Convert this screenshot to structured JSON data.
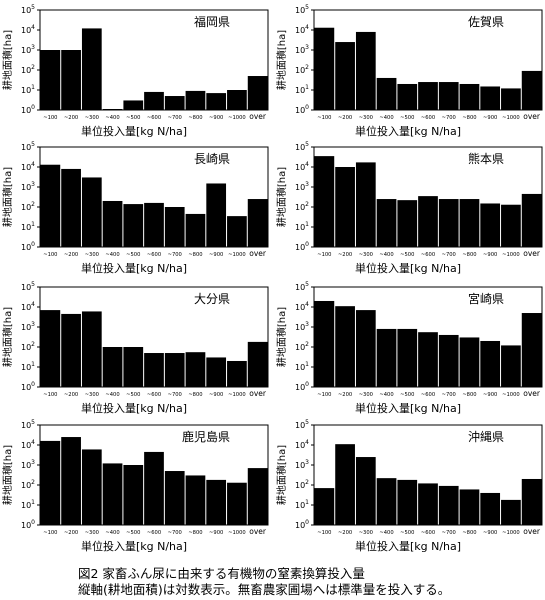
{
  "x_tick_labels": [
    "~100",
    "~200",
    "~300",
    "~400",
    "~500",
    "~600",
    "~700",
    "~800",
    "~900",
    "~1000",
    "over"
  ],
  "y_tick_labels": [
    {
      "base": "10",
      "exp": "0"
    },
    {
      "base": "10",
      "exp": "1"
    },
    {
      "base": "10",
      "exp": "2"
    },
    {
      "base": "10",
      "exp": "3"
    },
    {
      "base": "10",
      "exp": "4"
    },
    {
      "base": "10",
      "exp": "5"
    }
  ],
  "chart_data": [
    {
      "type": "bar",
      "title": "福岡県",
      "xlabel": "単位投入量[kg N/ha]",
      "ylabel": "耕地面積[ha]",
      "yscale": "log",
      "ylim": [
        1,
        100000
      ],
      "categories": [
        "~100",
        "~200",
        "~300",
        "~400",
        "~500",
        "~600",
        "~700",
        "~800",
        "~900",
        "~1000",
        "over"
      ],
      "values": [
        1000,
        1000,
        12000,
        1,
        3,
        8,
        5,
        9,
        7,
        10,
        50
      ]
    },
    {
      "type": "bar",
      "title": "佐賀県",
      "xlabel": "単位投入量[kg N/ha]",
      "ylabel": "耕地面積[ha]",
      "yscale": "log",
      "ylim": [
        1,
        100000
      ],
      "categories": [
        "~100",
        "~200",
        "~300",
        "~400",
        "~500",
        "~600",
        "~700",
        "~800",
        "~900",
        "~1000",
        "over"
      ],
      "values": [
        13000,
        2500,
        8000,
        40,
        20,
        25,
        25,
        20,
        15,
        12,
        90
      ]
    },
    {
      "type": "bar",
      "title": "長崎県",
      "xlabel": "単位投入量[kg N/ha]",
      "ylabel": "耕地面積[ha]",
      "yscale": "log",
      "ylim": [
        1,
        100000
      ],
      "categories": [
        "~100",
        "~200",
        "~300",
        "~400",
        "~500",
        "~600",
        "~700",
        "~800",
        "~900",
        "~1000",
        "over"
      ],
      "values": [
        13000,
        8000,
        3000,
        200,
        140,
        160,
        100,
        45,
        1500,
        35,
        250
      ]
    },
    {
      "type": "bar",
      "title": "熊本県",
      "xlabel": "単位投入量[kg N/ha]",
      "ylabel": "耕地面積[ha]",
      "yscale": "log",
      "ylim": [
        1,
        100000
      ],
      "categories": [
        "~100",
        "~200",
        "~300",
        "~400",
        "~500",
        "~600",
        "~700",
        "~800",
        "~900",
        "~1000",
        "over"
      ],
      "values": [
        35000,
        10000,
        17000,
        250,
        220,
        350,
        250,
        250,
        150,
        130,
        450
      ]
    },
    {
      "type": "bar",
      "title": "大分県",
      "xlabel": "単位投入量[kg N/ha]",
      "ylabel": "耕地面積[ha]",
      "yscale": "log",
      "ylim": [
        1,
        100000
      ],
      "categories": [
        "~100",
        "~200",
        "~300",
        "~400",
        "~500",
        "~600",
        "~700",
        "~800",
        "~900",
        "~1000",
        "over"
      ],
      "values": [
        7000,
        4500,
        6000,
        100,
        100,
        50,
        50,
        55,
        30,
        20,
        180
      ]
    },
    {
      "type": "bar",
      "title": "宮崎県",
      "xlabel": "単位投入量[kg N/ha]",
      "ylabel": "耕地面積[ha]",
      "yscale": "log",
      "ylim": [
        1,
        100000
      ],
      "categories": [
        "~100",
        "~200",
        "~300",
        "~400",
        "~500",
        "~600",
        "~700",
        "~800",
        "~900",
        "~1000",
        "over"
      ],
      "values": [
        20000,
        11000,
        7000,
        800,
        800,
        550,
        400,
        300,
        200,
        120,
        5000
      ]
    },
    {
      "type": "bar",
      "title": "鹿児島県",
      "xlabel": "単位投入量[kg N/ha]",
      "ylabel": "耕地面積[ha]",
      "yscale": "log",
      "ylim": [
        1,
        100000
      ],
      "categories": [
        "~100",
        "~200",
        "~300",
        "~400",
        "~500",
        "~600",
        "~700",
        "~800",
        "~900",
        "~1000",
        "over"
      ],
      "values": [
        16000,
        25000,
        6000,
        1200,
        1000,
        4500,
        500,
        300,
        180,
        130,
        700
      ]
    },
    {
      "type": "bar",
      "title": "沖縄県",
      "xlabel": "単位投入量[kg N/ha]",
      "ylabel": "耕地面積[ha]",
      "yscale": "log",
      "ylim": [
        1,
        100000
      ],
      "categories": [
        "~100",
        "~200",
        "~300",
        "~400",
        "~500",
        "~600",
        "~700",
        "~800",
        "~900",
        "~1000",
        "over"
      ],
      "values": [
        70,
        11000,
        2500,
        220,
        180,
        120,
        90,
        60,
        40,
        18,
        200
      ]
    }
  ],
  "caption": {
    "line1": "図2  家畜ふん尿に由来する有機物の窒素換算投入量",
    "line2": "縦軸(耕地面積)は対数表示。無畜農家圃場へは標準量を投入する。"
  }
}
